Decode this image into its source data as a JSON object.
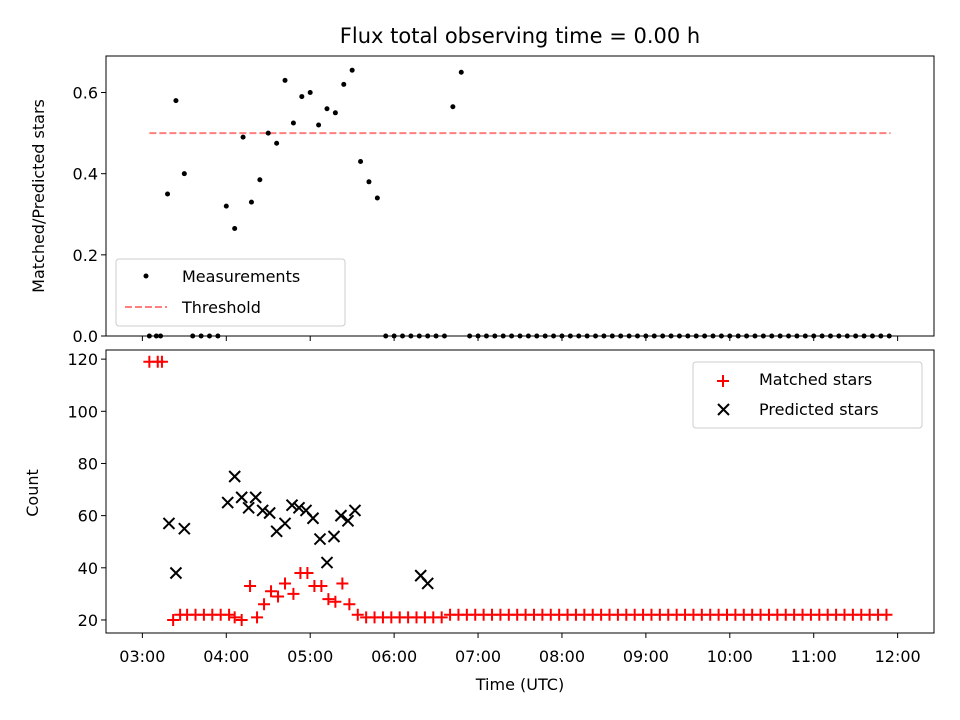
{
  "title": "Flux total observing time = 0.00 h",
  "chart_data": [
    {
      "type": "scatter",
      "ylabel": "Matched/Predicted stars",
      "xlabel": "",
      "xlim": [
        "02:34",
        "12:26"
      ],
      "ylim": [
        0,
        0.69
      ],
      "yticks": [
        0.0,
        0.2,
        0.4,
        0.6
      ],
      "ytick_labels": [
        "0.0",
        "0.2",
        "0.4",
        "0.6"
      ],
      "legend_position": "lower-left",
      "threshold": {
        "name": "Threshold",
        "value": 0.5,
        "x_range": [
          "03:05",
          "11:55"
        ],
        "color": "#ff7f7f"
      },
      "series": [
        {
          "name": "Measurements",
          "color": "#000000",
          "x": [
            "03:05",
            "03:10",
            "03:13",
            "03:18",
            "03:24",
            "03:30",
            "03:36",
            "03:42",
            "03:48",
            "03:54",
            "04:00",
            "04:06",
            "04:12",
            "04:18",
            "04:24",
            "04:30",
            "04:36",
            "04:42",
            "04:48",
            "04:54",
            "05:00",
            "05:06",
            "05:12",
            "05:18",
            "05:24",
            "05:30",
            "05:36",
            "05:42",
            "05:48",
            "05:54",
            "06:00",
            "06:06",
            "06:12",
            "06:18",
            "06:24",
            "06:30",
            "06:36",
            "06:42",
            "06:48",
            "06:54",
            "07:00",
            "07:06",
            "07:12",
            "07:18",
            "07:24",
            "07:30",
            "07:36",
            "07:42",
            "07:48",
            "07:54",
            "08:00",
            "08:06",
            "08:12",
            "08:18",
            "08:24",
            "08:30",
            "08:36",
            "08:42",
            "08:48",
            "08:54",
            "09:00",
            "09:06",
            "09:12",
            "09:18",
            "09:24",
            "09:30",
            "09:36",
            "09:42",
            "09:48",
            "09:54",
            "10:00",
            "10:06",
            "10:12",
            "10:18",
            "10:24",
            "10:30",
            "10:36",
            "10:42",
            "10:48",
            "10:54",
            "11:00",
            "11:06",
            "11:12",
            "11:18",
            "11:24",
            "11:30",
            "11:36",
            "11:42",
            "11:48",
            "11:54"
          ],
          "y": [
            0,
            0,
            0,
            0.35,
            0.58,
            0.4,
            0,
            0,
            0,
            0,
            0.32,
            0.265,
            0.49,
            0.33,
            0.385,
            0.5,
            0.475,
            0.63,
            0.525,
            0.59,
            0.6,
            0.52,
            0.56,
            0.55,
            0.62,
            0.655,
            0.43,
            0.38,
            0.34,
            0,
            0,
            0,
            0,
            0,
            0,
            0,
            0,
            0.565,
            0.65,
            0,
            0,
            0,
            0,
            0,
            0,
            0,
            0,
            0,
            0,
            0,
            0,
            0,
            0,
            0,
            0,
            0,
            0,
            0,
            0,
            0,
            0,
            0,
            0,
            0,
            0,
            0,
            0,
            0,
            0,
            0,
            0,
            0,
            0,
            0,
            0,
            0,
            0,
            0,
            0,
            0,
            0,
            0,
            0,
            0,
            0,
            0,
            0,
            0,
            0,
            0
          ]
        }
      ]
    },
    {
      "type": "scatter",
      "ylabel": "Count",
      "xlabel": "Time (UTC)",
      "xlim": [
        "02:34",
        "12:26"
      ],
      "ylim": [
        15,
        123.5
      ],
      "yticks": [
        20,
        40,
        60,
        80,
        100,
        120
      ],
      "xticks": [
        "03:00",
        "04:00",
        "05:00",
        "06:00",
        "07:00",
        "08:00",
        "09:00",
        "10:00",
        "11:00",
        "12:00"
      ],
      "legend_position": "top-right",
      "series": [
        {
          "name": "Matched stars",
          "marker": "+",
          "color": "#ff0000",
          "x": [
            "03:05",
            "03:11",
            "03:14",
            "03:22",
            "03:27",
            "03:32",
            "03:38",
            "03:44",
            "03:50",
            "03:56",
            "04:02",
            "04:06",
            "04:11",
            "04:17",
            "04:22",
            "04:27",
            "04:32",
            "04:37",
            "04:42",
            "04:48",
            "04:53",
            "04:58",
            "05:03",
            "05:08",
            "05:13",
            "05:18",
            "05:23",
            "05:28",
            "05:34",
            "05:40",
            "05:46",
            "05:52",
            "05:58",
            "06:04",
            "06:10",
            "06:16",
            "06:22",
            "06:28",
            "06:34",
            "06:40",
            "06:46",
            "06:52",
            "06:58",
            "07:04",
            "07:10",
            "07:16",
            "07:22",
            "07:28",
            "07:34",
            "07:40",
            "07:46",
            "07:52",
            "07:58",
            "08:04",
            "08:10",
            "08:16",
            "08:22",
            "08:28",
            "08:34",
            "08:40",
            "08:46",
            "08:52",
            "08:58",
            "09:04",
            "09:10",
            "09:16",
            "09:22",
            "09:28",
            "09:34",
            "09:40",
            "09:46",
            "09:52",
            "09:58",
            "10:04",
            "10:10",
            "10:16",
            "10:22",
            "10:28",
            "10:34",
            "10:40",
            "10:46",
            "10:52",
            "10:58",
            "11:04",
            "11:10",
            "11:16",
            "11:22",
            "11:28",
            "11:34",
            "11:40",
            "11:46",
            "11:52"
          ],
          "y": [
            119,
            119,
            119,
            20,
            22,
            22,
            22,
            22,
            22,
            22,
            22,
            21,
            20,
            33,
            21,
            26,
            31,
            29,
            34,
            30,
            38,
            38,
            33,
            33,
            28,
            27,
            34,
            26,
            22,
            21,
            21,
            21,
            21,
            21,
            21,
            21,
            21,
            21,
            21,
            22,
            22,
            22,
            22,
            22,
            22,
            22,
            22,
            22,
            22,
            22,
            22,
            22,
            22,
            22,
            22,
            22,
            22,
            22,
            22,
            22,
            22,
            22,
            22,
            22,
            22,
            22,
            22,
            22,
            22,
            22,
            22,
            22,
            22,
            22,
            22,
            22,
            22,
            22,
            22,
            22,
            22,
            22,
            22,
            22,
            22,
            22,
            22,
            22,
            22,
            22,
            22,
            22
          ]
        },
        {
          "name": "Predicted stars",
          "marker": "x",
          "color": "#000000",
          "x": [
            "03:19",
            "03:24",
            "03:30",
            "04:01",
            "04:06",
            "04:11",
            "04:16",
            "04:21",
            "04:26",
            "04:31",
            "04:36",
            "04:42",
            "04:47",
            "04:52",
            "04:57",
            "05:02",
            "05:07",
            "05:12",
            "05:17",
            "05:22",
            "05:27",
            "05:32",
            "06:19",
            "06:24"
          ],
          "y": [
            57,
            38,
            55,
            65,
            75,
            67,
            63,
            67,
            62,
            61,
            54,
            57,
            64,
            63,
            62,
            59,
            51,
            42,
            52,
            60,
            58,
            62,
            37,
            34
          ]
        }
      ]
    }
  ]
}
